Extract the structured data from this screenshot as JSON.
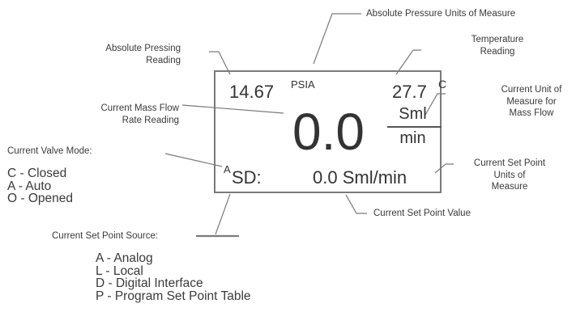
{
  "display": {
    "pressure_value": "14.67",
    "pressure_unit": "PSIA",
    "temperature_value": "27.7",
    "temperature_unit": "C",
    "flow_value": "0.0",
    "flow_unit_top": "Sml",
    "flow_unit_bottom": "min",
    "valve_mode": "A",
    "setpoint_source": "SD:",
    "setpoint_value": "0.0 Sml/min"
  },
  "callouts": {
    "pressure_units": "Absolute Pressure Units of Measure",
    "pressing_reading": [
      "Absolute Pressing",
      "Reading"
    ],
    "temperature_reading": [
      "Temperature",
      "Reading"
    ],
    "mass_flow_rate": [
      "Current Mass Flow",
      "Rate Reading"
    ],
    "unit_mass_flow": [
      "Current Unit of",
      "Measure for",
      "Mass Flow"
    ],
    "valve_mode": "Current Valve Mode:",
    "setpoint_units": [
      "Current Set Point",
      "Units of",
      "Measure"
    ],
    "setpoint_value": "Current Set Point Value",
    "setpoint_source": "Current Set Point Source:"
  },
  "valve_modes": [
    "C - Closed",
    "A - Auto",
    "O - Opened"
  ],
  "setpoint_sources": [
    "A - Analog",
    "L - Local",
    "D - Digital Interface",
    "P - Program Set Point Table"
  ]
}
